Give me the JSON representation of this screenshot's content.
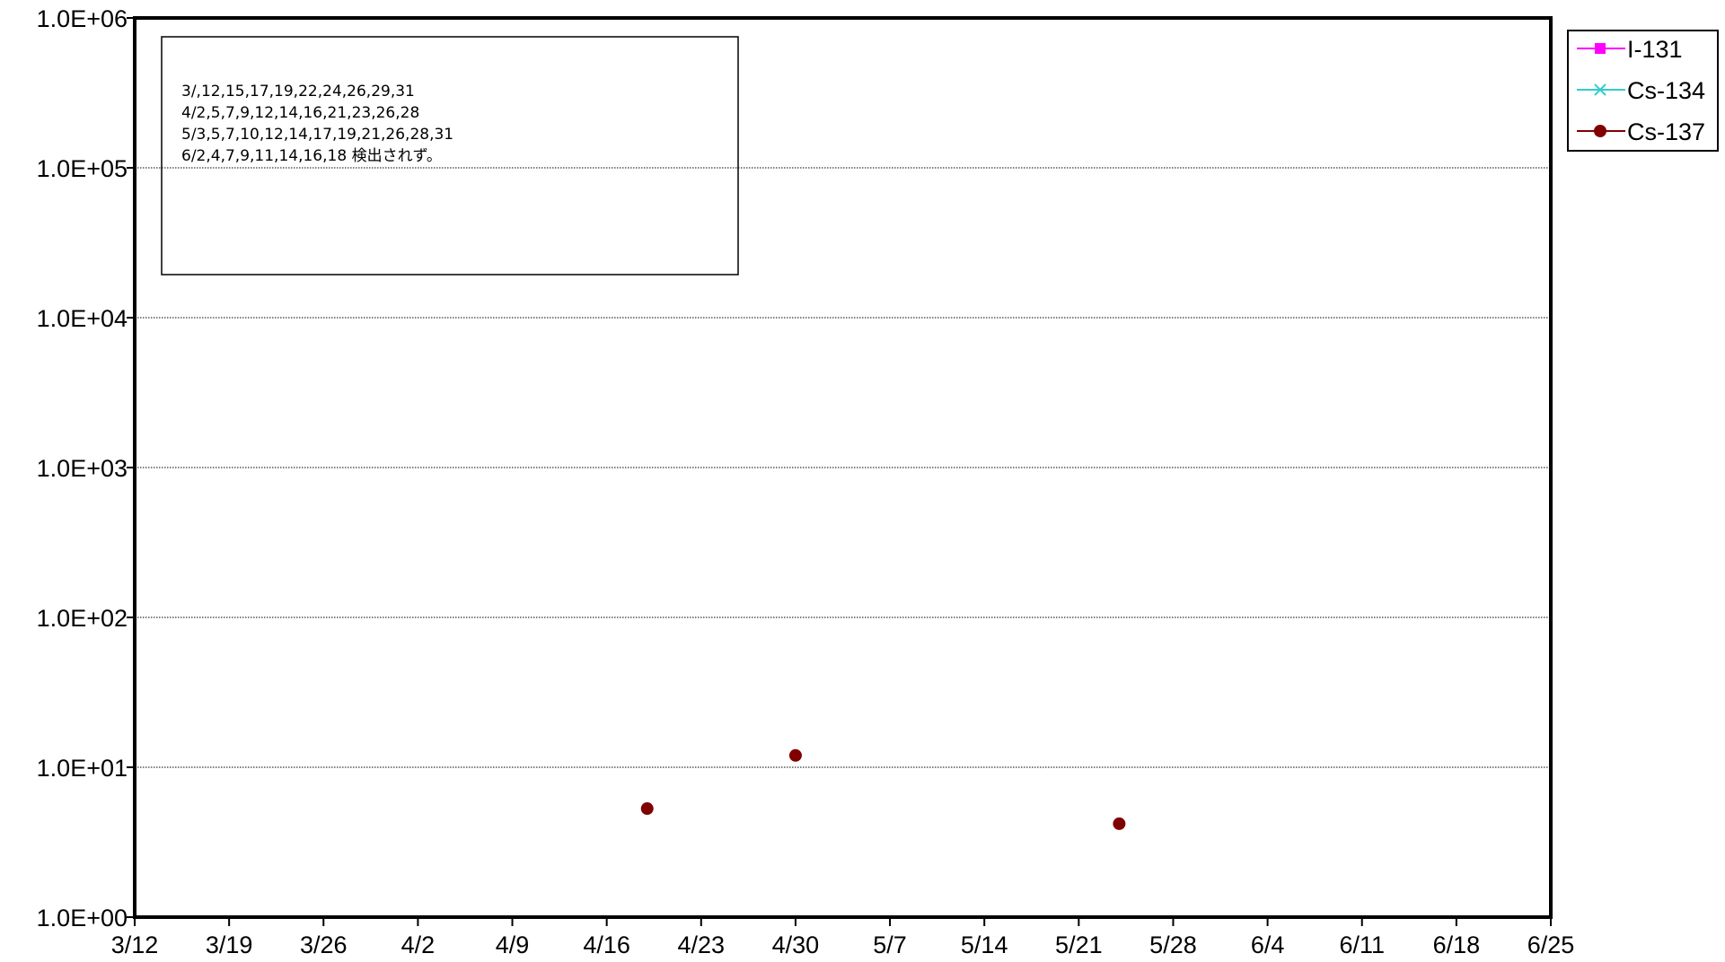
{
  "chart_data": {
    "type": "scatter",
    "y_scale": "log",
    "ylim": [
      1,
      1000000
    ],
    "y_ticks": [
      {
        "value": 1,
        "label": "1.0E+00"
      },
      {
        "value": 10,
        "label": "1.0E+01"
      },
      {
        "value": 100,
        "label": "1.0E+02"
      },
      {
        "value": 1000,
        "label": "1.0E+03"
      },
      {
        "value": 10000,
        "label": "1.0E+04"
      },
      {
        "value": 100000,
        "label": "1.0E+05"
      },
      {
        "value": 1000000,
        "label": "1.0E+06"
      }
    ],
    "xlim": [
      "3/12",
      "6/25"
    ],
    "x_ticks": [
      "3/12",
      "3/19",
      "3/26",
      "4/2",
      "4/9",
      "4/16",
      "4/23",
      "4/30",
      "5/7",
      "5/14",
      "5/21",
      "5/28",
      "6/4",
      "6/11",
      "6/18",
      "6/25"
    ],
    "grid": "horizontal",
    "legend_position": "top-right",
    "series": [
      {
        "name": "I-131",
        "color": "#ff00ff",
        "marker": "square",
        "points": []
      },
      {
        "name": "Cs-134",
        "color": "#33cccc",
        "marker": "x",
        "points": []
      },
      {
        "name": "Cs-137",
        "color": "#800000",
        "marker": "circle",
        "points": [
          {
            "x": "4/19",
            "y": 5.3
          },
          {
            "x": "4/30",
            "y": 12
          },
          {
            "x": "5/24",
            "y": 4.2
          }
        ]
      }
    ],
    "annotation": {
      "lines": [
        "3/,12,15,17,19,22,24,26,29,31",
        "4/2,5,7,9,12,14,16,21,23,26,28",
        "5/3,5,7,10,12,14,17,19,21,26,28,31",
        "6/2,4,7,9,11,14,16,18 検出されず。"
      ]
    }
  }
}
